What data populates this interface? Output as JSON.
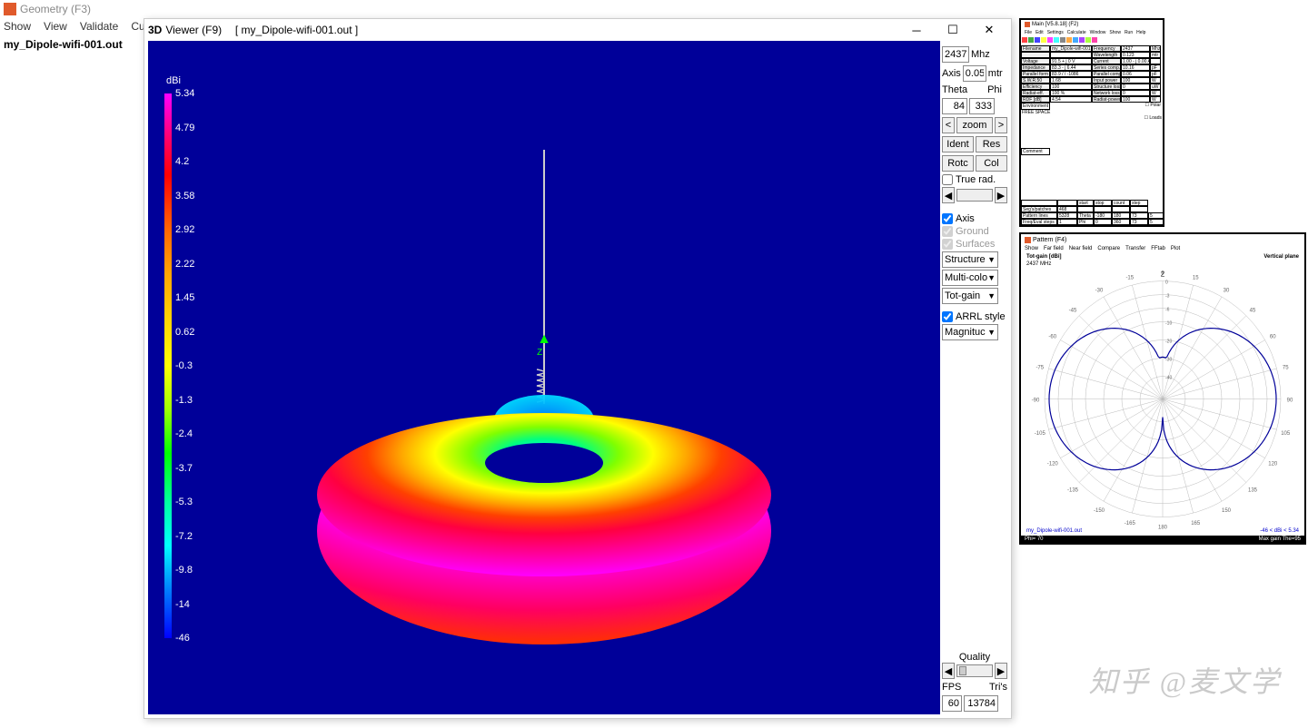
{
  "main_menubar": {
    "title": "Geometry   (F3)"
  },
  "second_menubar": {
    "items": [
      "Show",
      "View",
      "Validate",
      "Curr"
    ]
  },
  "file_label": "my_Dipole-wifi-001.out",
  "viewer": {
    "title_bold": "3D",
    "title_rest": "Viewer (F9)",
    "title_file": "[  my_Dipole-wifi-001.out  ]",
    "bg_color": "#000099",
    "colorscale": {
      "unit": "dBi",
      "ticks": [
        "5.34",
        "4.79",
        "4.2",
        "3.58",
        "2.92",
        "2.22",
        "1.45",
        "0.62",
        "-0.3",
        "-1.3",
        "-2.4",
        "-3.7",
        "-5.3",
        "-7.2",
        "-9.8",
        "-14",
        "-46"
      ],
      "gradient_colors": [
        "#ff00ff",
        "#ff0070",
        "#ff0000",
        "#ff6600",
        "#ffa500",
        "#ffd700",
        "#ffff00",
        "#a0ff00",
        "#00ff00",
        "#00ffa0",
        "#00ffff",
        "#0080ff",
        "#0000ff"
      ]
    }
  },
  "controls": {
    "freq": "2437",
    "freq_unit": "Mhz",
    "axis_label": "Axis",
    "axis_val": "0.05",
    "axis_unit": "mtr",
    "theta_label": "Theta",
    "phi_label": "Phi",
    "theta_val": "84",
    "phi_val": "333",
    "zoom_label": "zoom",
    "btn_ident": "Ident",
    "btn_res": "Res",
    "btn_rotc": "Rotc",
    "btn_col": "Col",
    "chk_truerad": "True rad.",
    "chk_axis": "Axis",
    "chk_ground": "Ground",
    "chk_surfaces": "Surfaces",
    "sel_structure": "Structure",
    "sel_multicolor": "Multi-colo",
    "sel_totgain": "Tot-gain",
    "chk_arrl": "ARRL style",
    "sel_magnitude": "Magnituc",
    "quality_label": "Quality",
    "fps_label": "FPS",
    "fps_val": "60",
    "tris_label": "Tri's",
    "tris_val": "13784"
  },
  "thumb_main": {
    "title": "Main [V5.8.18]  (F2)",
    "menu": [
      "File",
      "Edit",
      "Settings",
      "Calculate",
      "Window",
      "Show",
      "Run",
      "Help"
    ],
    "rows": [
      [
        "Filename",
        "my_Dipole-wifi-001.o",
        "Frequency",
        "2437",
        "Mhz"
      ],
      [
        "",
        "",
        "Wavelength",
        "0.123",
        "mtr"
      ],
      [
        "Voltage",
        "91.5 + j 0 V",
        "Current",
        "1.00 - j 0.00 A",
        ""
      ],
      [
        "Impedance",
        "83.3 - j 6.44",
        "Series comp.",
        "10.16",
        "pF"
      ],
      [
        "Parallel form",
        "83.9 / / -1086",
        "Parallel comp.",
        "0.06",
        "pF"
      ],
      [
        "S.W.R.50",
        "1.68",
        "Input power",
        "100",
        "W"
      ],
      [
        "Efficiency",
        "100",
        "Structure loss",
        "0",
        "uW"
      ],
      [
        "Radiat-eff.",
        "100 %",
        "Network loss",
        "0",
        "W"
      ],
      [
        "RDF [dB]",
        "4.54",
        "Radiat-power",
        "100",
        "W"
      ]
    ],
    "env_label": "Environment",
    "env_val": "FREE SPACE",
    "polar": "Polar",
    "loads": "Loads",
    "comment": "Comment",
    "bottom_hdr": [
      "",
      "",
      "start",
      "stop",
      "count",
      "step"
    ],
    "bottom_rows": [
      [
        "Seg's/patches",
        "468",
        "",
        "",
        "",
        ""
      ],
      [
        "Pattern lines",
        "5328",
        "Theta",
        "-180",
        "180",
        "73",
        "5"
      ],
      [
        "Freq/Eval steps",
        "1",
        "Phi",
        "0",
        "360",
        "73",
        "5"
      ]
    ]
  },
  "thumb_pattern": {
    "title": "Pattern   (F4)",
    "menu": [
      "Show",
      "Far field",
      "Near field",
      "Compare",
      "Transfer",
      "FFtab",
      "Plot"
    ],
    "header_left": "Tot-gain [dBi]",
    "header_right": "Vertical plane",
    "freq": "2437 MHz",
    "angles": [
      "0",
      "15",
      "30",
      "45",
      "60",
      "75",
      "90",
      "105",
      "120",
      "135",
      "150",
      "165",
      "180",
      "-165",
      "-150",
      "-135",
      "-120",
      "-105",
      "-90",
      "-75",
      "-60",
      "-45",
      "-30",
      "-15"
    ],
    "axis_z": "Z",
    "radial_ticks": [
      "0",
      "-3",
      "-6",
      "-10",
      "-20",
      "-30",
      "-40"
    ],
    "file": "my_Dipole-wifi-001.out",
    "maxgain": "-46 < dBi < 5.34",
    "footer_left": "Phi= 70",
    "footer_right": "Max gain The=95",
    "pattern_color": "#000099",
    "grid_color": "#bbbbbb"
  },
  "watermark": "知乎 @麦文学"
}
